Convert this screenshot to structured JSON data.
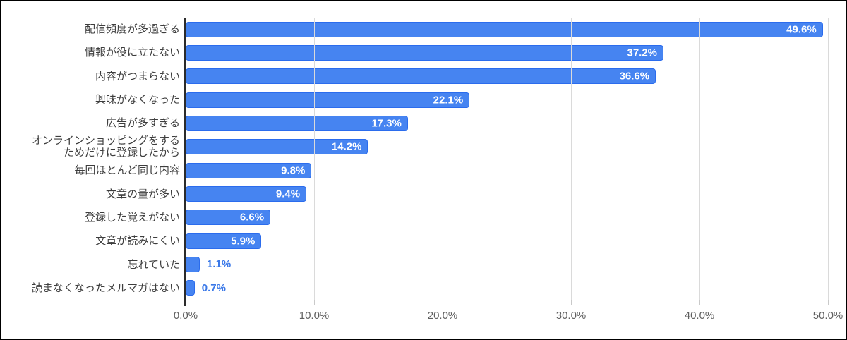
{
  "chart_data": {
    "type": "bar",
    "orientation": "horizontal",
    "categories": [
      "配信頻度が多過ぎる",
      "情報が役に立たない",
      "内容がつまらない",
      "興味がなくなった",
      "広告が多すぎる",
      "オンラインショッピングをする\nためだけに登録したから",
      "毎回ほとんど同じ内容",
      "文章の量が多い",
      "登録した覚えがない",
      "文章が読みにくい",
      "忘れていた",
      "読まなくなったメルマガはない"
    ],
    "values": [
      49.6,
      37.2,
      36.6,
      22.1,
      17.3,
      14.2,
      9.8,
      9.4,
      6.6,
      5.9,
      1.1,
      0.7
    ],
    "value_labels": [
      "49.6%",
      "37.2%",
      "36.6%",
      "22.1%",
      "17.3%",
      "14.2%",
      "9.8%",
      "9.4%",
      "6.6%",
      "5.9%",
      "1.1%",
      "0.7%"
    ],
    "xlim": [
      0,
      50
    ],
    "x_ticks": [
      {
        "value": 0,
        "label": "0.0%"
      },
      {
        "value": 10,
        "label": "10.0%"
      },
      {
        "value": 20,
        "label": "20.0%"
      },
      {
        "value": 30,
        "label": "30.0%"
      },
      {
        "value": 40,
        "label": "40.0%"
      },
      {
        "value": 50,
        "label": "50.0%"
      }
    ],
    "inside_label_min_value": 3,
    "grid": true,
    "legend": "none",
    "colors": {
      "bar_fill": "#4684f1",
      "bar_border": "#2b6ced",
      "value_label_inside": "#ffffff",
      "value_label_outside": "#3a78e8",
      "gridline": "#dadada",
      "axis_line": "#2b2b2b",
      "category_label": "#3d3d3d",
      "tick_label": "#5f5f5f",
      "frame_border": "#000000",
      "background": "#ffffff"
    }
  }
}
